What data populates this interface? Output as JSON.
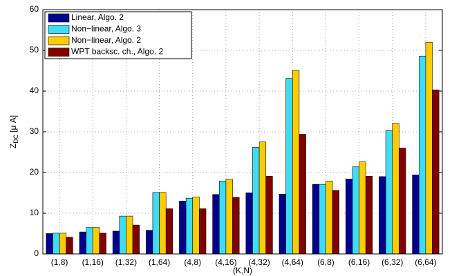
{
  "chart_data": {
    "type": "bar",
    "ylabel": [
      "Z",
      "DC",
      "[μ A]"
    ],
    "xlabel": "(K,N)",
    "categories": [
      "(1,8)",
      "(1,16)",
      "(1,32)",
      "(1,64)",
      "(4,8)",
      "(4,16)",
      "(4,32)",
      "(4,64)",
      "(6,8)",
      "(6,16)",
      "(6,32)",
      "(6,64)"
    ],
    "series": [
      {
        "name": "Linear, Algo. 2",
        "color": "#00008f",
        "values": [
          5.0,
          5.4,
          5.6,
          5.8,
          13.0,
          14.6,
          15.0,
          14.7,
          17.1,
          18.4,
          19.0,
          19.4
        ]
      },
      {
        "name": "Non−linear, Algo. 3",
        "color": "#3fdcf5",
        "values": [
          5.1,
          6.5,
          9.3,
          15.1,
          13.7,
          17.9,
          26.2,
          43.1,
          17.1,
          21.4,
          30.3,
          48.6
        ]
      },
      {
        "name": "Non−linear, Algo. 2",
        "color": "#ffcc00",
        "values": [
          5.1,
          6.5,
          9.3,
          15.1,
          14.0,
          18.3,
          27.5,
          45.1,
          17.9,
          22.6,
          32.1,
          52.0
        ]
      },
      {
        "name": "WPT backsc. ch., Algo. 2",
        "color": "#800000",
        "values": [
          4.1,
          5.1,
          7.1,
          11.1,
          11.1,
          13.9,
          19.1,
          29.4,
          15.6,
          19.1,
          26.0,
          40.3
        ]
      }
    ],
    "ylim": [
      0,
      60
    ],
    "yticks": [
      0,
      10,
      20,
      30,
      40,
      50,
      60
    ],
    "grid": true,
    "legend": "upper-left"
  }
}
